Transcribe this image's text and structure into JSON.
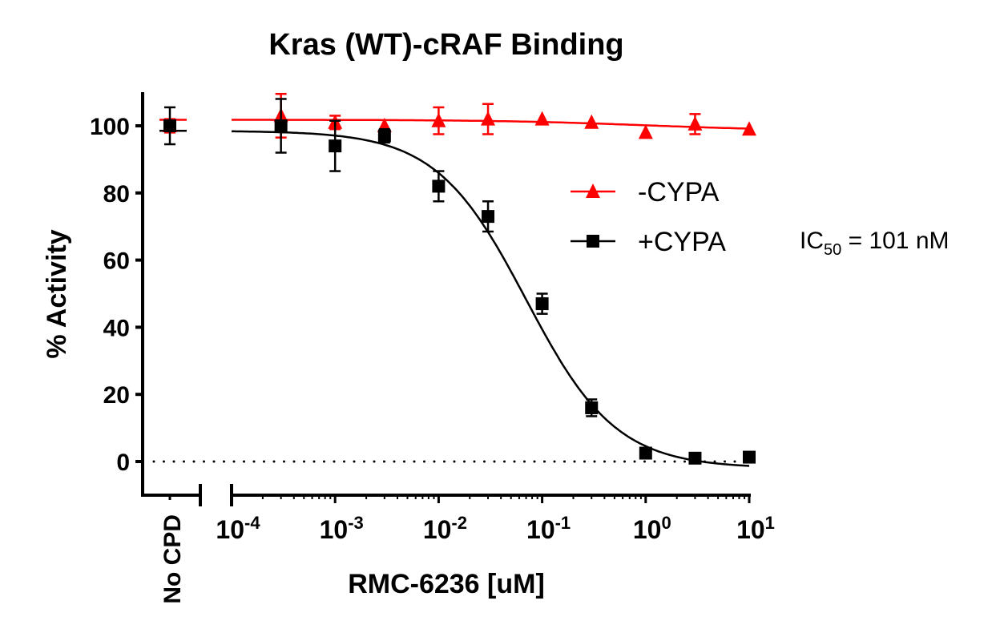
{
  "chart_data": {
    "type": "scatter",
    "title": "Kras (WT)-cRAF Binding",
    "xlabel": "RMC-6236 [uM]",
    "ylabel": "% Activity",
    "xscale": "log",
    "xlim": [
      0.0001,
      10
    ],
    "ylim": [
      -10,
      110
    ],
    "yticks": [
      0,
      20,
      40,
      60,
      80,
      100
    ],
    "ytick_labels": [
      "0",
      "20",
      "40",
      "60",
      "80",
      "100"
    ],
    "xticks": [
      0.0001,
      0.001,
      0.01,
      0.1,
      1,
      10
    ],
    "xtick_bases": [
      "10",
      "10",
      "10",
      "10",
      "10",
      "10"
    ],
    "xtick_exponents": [
      "-4",
      "-3",
      "-2",
      "-1",
      "0",
      "1"
    ],
    "control_label": "No CPD",
    "reference_line": {
      "y": 0,
      "style": "dotted"
    },
    "x": [
      0.0003,
      0.001,
      0.003,
      0.01,
      0.03,
      0.1,
      0.3,
      1,
      3,
      10
    ],
    "series": [
      {
        "name": "-CYPA",
        "color": "#ff0000",
        "marker": "triangle",
        "control": {
          "value": 100,
          "error": 2
        },
        "values": [
          103,
          101,
          100,
          101.5,
          102,
          102,
          101,
          98,
          100.5,
          99
        ],
        "errors": [
          6.5,
          2,
          0,
          4,
          4.5,
          0,
          0,
          0,
          3,
          0
        ],
        "fit": {
          "top": 101.8,
          "bottom": 98.5,
          "ic50": 1.0,
          "hill": 0.6
        }
      },
      {
        "name": "+CYPA",
        "color": "#000000",
        "marker": "square",
        "control": {
          "value": 100,
          "error": 5.5
        },
        "values": [
          100,
          94,
          97,
          82,
          73,
          47,
          16,
          2.5,
          1,
          1.3
        ],
        "errors": [
          8,
          7.5,
          2,
          4.5,
          4.5,
          3,
          2.5,
          0,
          0,
          0
        ],
        "fit": {
          "top": 98.5,
          "bottom": -2,
          "ic50": 0.07,
          "hill": 1.0
        }
      }
    ],
    "legend": "right",
    "annotation": {
      "prefix": "IC",
      "subscript": "50",
      "suffix": " = 101 nM"
    }
  }
}
